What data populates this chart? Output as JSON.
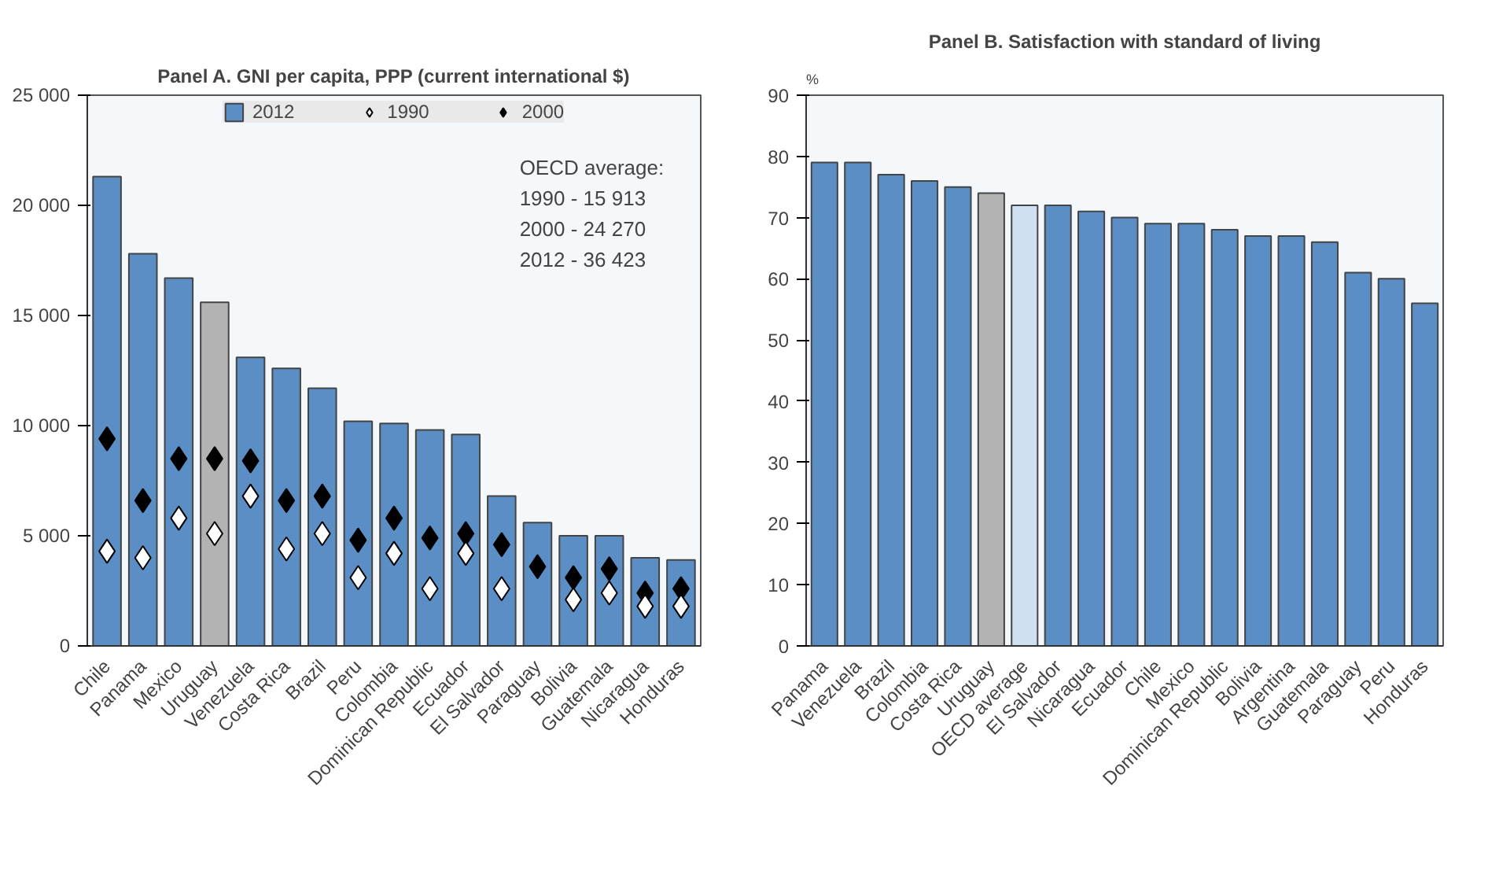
{
  "chart_data": [
    {
      "type": "bar",
      "title": "Panel A. GNI per capita, PPP (current international $)",
      "categories": [
        "Chile",
        "Panama",
        "Mexico",
        "Uruguay",
        "Venezuela",
        "Costa Rica",
        "Brazil",
        "Peru",
        "Colombia",
        "Dominican Republic",
        "Ecuador",
        "El Salvador",
        "Paraguay",
        "Bolivia",
        "Guatemala",
        "Nicaragua",
        "Honduras"
      ],
      "series": [
        {
          "name": "2012",
          "type": "bar",
          "colors": [
            "#5b8ec4",
            "#5b8ec4",
            "#5b8ec4",
            "#b3b3b3",
            "#5b8ec4",
            "#5b8ec4",
            "#5b8ec4",
            "#5b8ec4",
            "#5b8ec4",
            "#5b8ec4",
            "#5b8ec4",
            "#5b8ec4",
            "#5b8ec4",
            "#5b8ec4",
            "#5b8ec4",
            "#5b8ec4",
            "#5b8ec4"
          ],
          "values": [
            21300,
            17800,
            16700,
            15600,
            13100,
            12600,
            11700,
            10200,
            10100,
            9800,
            9600,
            6800,
            5600,
            5000,
            5000,
            4000,
            3900
          ]
        },
        {
          "name": "1990",
          "type": "scatter",
          "marker": "diamond",
          "color": "#ffffff",
          "values": [
            4300,
            4000,
            5800,
            5100,
            6800,
            4400,
            5100,
            3100,
            4200,
            2600,
            4200,
            2600,
            null,
            2100,
            2400,
            1800,
            1800
          ]
        },
        {
          "name": "2000",
          "type": "scatter",
          "marker": "diamond",
          "color": "#000000",
          "values": [
            9400,
            6600,
            8500,
            8500,
            8400,
            6600,
            6800,
            4800,
            5800,
            4900,
            5100,
            4600,
            3600,
            3100,
            3500,
            2400,
            2600
          ]
        }
      ],
      "ylim": [
        0,
        25000
      ],
      "yticks": [
        {
          "value": 0,
          "label": "0"
        },
        {
          "value": 5000,
          "label": "5 000"
        },
        {
          "value": 10000,
          "label": "10 000"
        },
        {
          "value": 15000,
          "label": "15 000"
        },
        {
          "value": 20000,
          "label": "20 000"
        },
        {
          "value": 25000,
          "label": "25 000"
        }
      ],
      "annotations": [
        "OECD average:\n1990 - 15 913\n2000 - 24 270\n2012 - 36 423"
      ],
      "legend": "top",
      "grid": false
    },
    {
      "type": "bar",
      "title": "Panel B. Satisfaction with standard of living",
      "ylabel": "%",
      "categories": [
        "Panama",
        "Venezuela",
        "Brazil",
        "Colombia",
        "Costa Rica",
        "Uruguay",
        "OECD average",
        "El Salvador",
        "Nicaragua",
        "Ecuador",
        "Chile",
        "Mexico",
        "Dominican Republic",
        "Bolivia",
        "Argentina",
        "Guatemala",
        "Paraguay",
        "Peru",
        "Honduras"
      ],
      "values": [
        79,
        79,
        77,
        76,
        75,
        74,
        72,
        72,
        71,
        70,
        69,
        69,
        68,
        67,
        67,
        66,
        61,
        60,
        56
      ],
      "colors": [
        "#5b8ec4",
        "#5b8ec4",
        "#5b8ec4",
        "#5b8ec4",
        "#5b8ec4",
        "#b3b3b3",
        "#cfe0f1",
        "#5b8ec4",
        "#5b8ec4",
        "#5b8ec4",
        "#5b8ec4",
        "#5b8ec4",
        "#5b8ec4",
        "#5b8ec4",
        "#5b8ec4",
        "#5b8ec4",
        "#5b8ec4",
        "#5b8ec4",
        "#5b8ec4"
      ],
      "ylim": [
        0,
        90
      ],
      "yticks": [
        0,
        10,
        20,
        30,
        40,
        50,
        60,
        70,
        80,
        90
      ],
      "grid": false
    }
  ]
}
